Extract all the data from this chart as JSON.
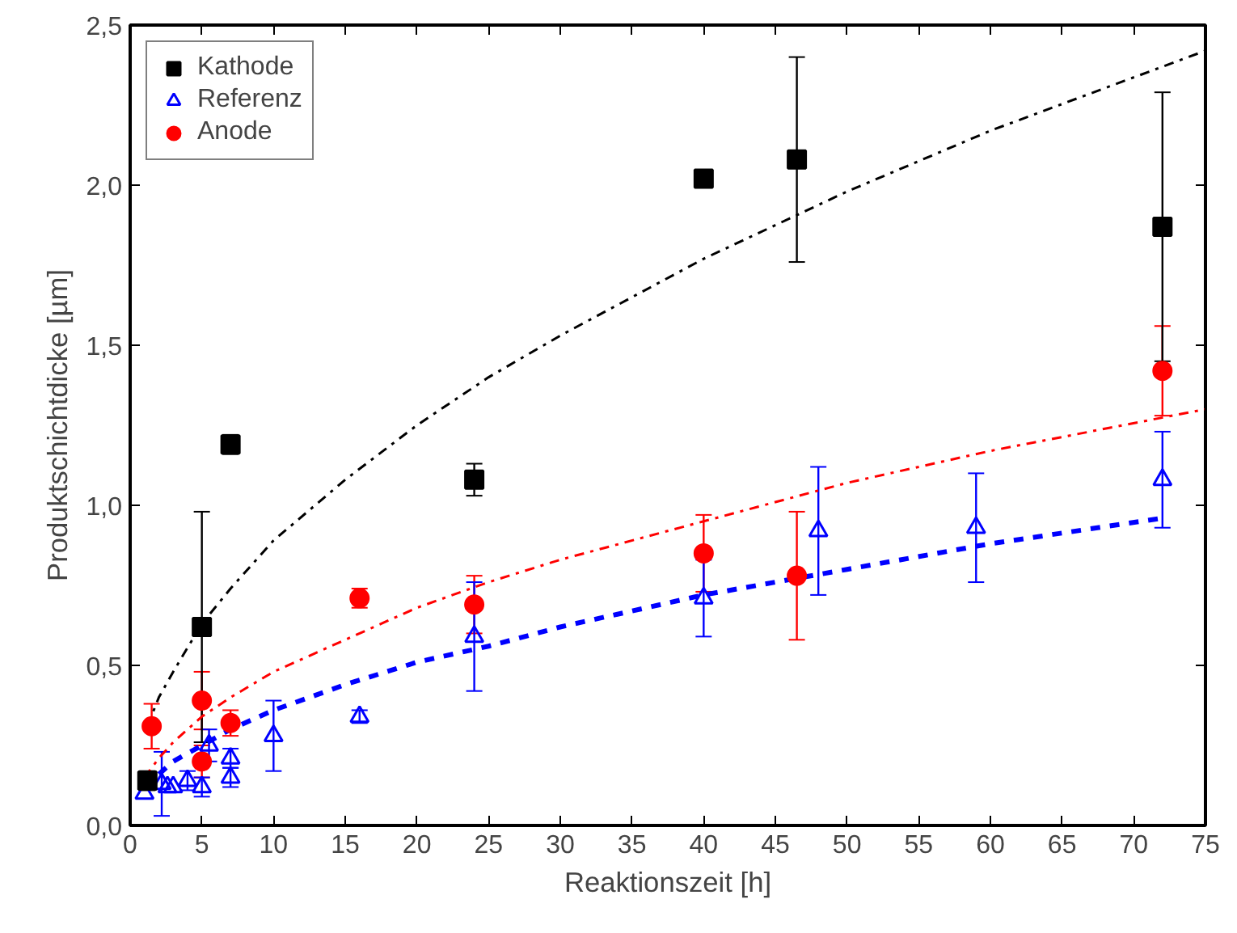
{
  "chart_data": {
    "type": "scatter",
    "xlabel": "Reaktionszeit [h]",
    "ylabel": "Produktschichtdicke [µm]",
    "xlim": [
      0,
      75
    ],
    "ylim": [
      0,
      2.5
    ],
    "xticks": [
      0,
      5,
      10,
      15,
      20,
      25,
      30,
      35,
      40,
      45,
      50,
      55,
      60,
      65,
      70,
      75
    ],
    "yticks": [
      {
        "value": 0,
        "label": "0,0"
      },
      {
        "value": 0.5,
        "label": "0,5"
      },
      {
        "value": 1.0,
        "label": "1,0"
      },
      {
        "value": 1.5,
        "label": "1,5"
      },
      {
        "value": 2.0,
        "label": "2,0"
      },
      {
        "value": 2.5,
        "label": "2,5"
      }
    ],
    "grid": false,
    "legend": "top left",
    "series": [
      {
        "name": "Kathode",
        "color": "#000000",
        "marker": "square",
        "x": [
          1.2,
          5,
          7,
          24,
          40,
          46.5,
          72
        ],
        "values": [
          0.14,
          0.62,
          1.19,
          1.08,
          2.02,
          2.08,
          1.87
        ],
        "errors": [
          0.03,
          0.36,
          0.03,
          0.05,
          null,
          0.32,
          0.42
        ]
      },
      {
        "name": "Referenz",
        "color": "#0000ff",
        "marker": "triangle",
        "x": [
          1,
          2.2,
          2.6,
          3,
          4,
          5,
          5.5,
          7,
          7,
          10,
          16,
          24,
          40,
          48,
          59,
          72
        ],
        "values": [
          0.1,
          0.13,
          0.12,
          0.12,
          0.14,
          0.12,
          0.25,
          0.15,
          0.21,
          0.28,
          0.34,
          0.59,
          0.71,
          0.92,
          0.93,
          1.08
        ],
        "errors": [
          null,
          0.1,
          null,
          null,
          0.03,
          0.03,
          0.05,
          0.03,
          0.03,
          0.11,
          0.02,
          0.17,
          0.12,
          0.2,
          0.17,
          0.15
        ]
      },
      {
        "name": "Anode",
        "color": "#ff0000",
        "marker": "circle",
        "x": [
          1.5,
          5,
          5,
          7,
          16,
          24,
          40,
          46.5,
          72
        ],
        "values": [
          0.31,
          0.39,
          0.2,
          0.32,
          0.71,
          0.69,
          0.85,
          0.78,
          1.42
        ],
        "errors": [
          0.07,
          0.09,
          0.05,
          0.04,
          0.03,
          0.09,
          0.12,
          0.2,
          0.14
        ]
      },
      {
        "type": "line",
        "color": "#000000",
        "line_style": "dashdot",
        "x": [
          1.2,
          2,
          3,
          5,
          7,
          10,
          15,
          20,
          25,
          30,
          40,
          50,
          60,
          75
        ],
        "values": [
          0.31,
          0.4,
          0.48,
          0.63,
          0.74,
          0.89,
          1.08,
          1.25,
          1.4,
          1.53,
          1.77,
          1.98,
          2.17,
          2.42
        ]
      },
      {
        "type": "line",
        "color": "#ff0000",
        "line_style": "dashdot",
        "x": [
          1,
          2,
          3,
          5,
          7,
          10,
          15,
          20,
          25,
          30,
          40,
          50,
          60,
          75
        ],
        "values": [
          0.15,
          0.21,
          0.26,
          0.34,
          0.4,
          0.48,
          0.58,
          0.68,
          0.76,
          0.83,
          0.95,
          1.07,
          1.17,
          1.3
        ]
      },
      {
        "type": "line",
        "color": "#0000ff",
        "line_style": "dashed",
        "x": [
          1,
          2,
          3,
          5,
          7,
          10,
          15,
          20,
          25,
          30,
          40,
          50,
          60,
          72
        ],
        "values": [
          0.12,
          0.16,
          0.2,
          0.25,
          0.3,
          0.36,
          0.44,
          0.51,
          0.56,
          0.62,
          0.72,
          0.8,
          0.88,
          0.96
        ]
      }
    ]
  }
}
